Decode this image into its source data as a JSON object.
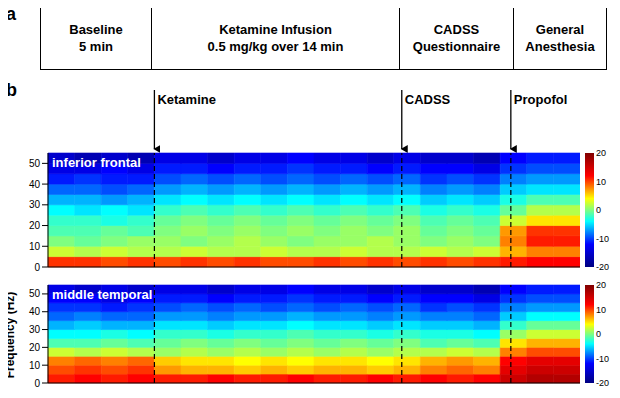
{
  "timeline": {
    "label": "a",
    "boxes": [
      [
        "Baseline",
        "5 min"
      ],
      [
        "Ketamine Infusion",
        "0.5 mg/kg over 14 min"
      ],
      [
        "CADSS",
        "Questionnaire"
      ],
      [
        "General",
        "Anesthesia"
      ]
    ]
  },
  "panel_label": "b",
  "y_label": "Frequency (Hz)",
  "events": [
    {
      "x": 20,
      "label": "Ketamine"
    },
    {
      "x": 66.5,
      "label": "CADSS"
    },
    {
      "x": 87,
      "label": "Propofol"
    }
  ],
  "chart_data": [
    {
      "type": "heatmap",
      "title": "inferior frontal",
      "xlim": [
        0,
        100
      ],
      "ylim": [
        0,
        55
      ],
      "yticks": [
        0,
        10,
        20,
        30,
        40,
        50
      ],
      "tick_labels": "y",
      "x_bins": [
        0,
        5,
        10,
        15,
        20,
        25,
        30,
        35,
        40,
        45,
        50,
        55,
        60,
        65,
        70,
        75,
        80,
        85,
        90,
        95,
        100
      ],
      "y_bins": [
        0,
        5,
        10,
        15,
        20,
        25,
        30,
        35,
        40,
        45,
        50,
        55
      ],
      "cells": [
        [
          13,
          13,
          12,
          13,
          12,
          13,
          12,
          13,
          12,
          12,
          13,
          12,
          13,
          12,
          13,
          12,
          13,
          14,
          15,
          15
        ],
        [
          3,
          2,
          3,
          2,
          2,
          3,
          2,
          2,
          3,
          2,
          2,
          3,
          2,
          2,
          3,
          2,
          3,
          8,
          10,
          10
        ],
        [
          0,
          -1,
          0,
          1,
          1,
          0,
          1,
          2,
          1,
          0,
          1,
          1,
          2,
          1,
          0,
          1,
          0,
          10,
          14,
          14
        ],
        [
          -2,
          -2,
          -1,
          -2,
          0,
          1,
          0,
          1,
          0,
          1,
          0,
          1,
          0,
          1,
          -1,
          0,
          -1,
          9,
          13,
          13
        ],
        [
          -3,
          -3,
          -4,
          -3,
          -1,
          0,
          -1,
          0,
          -1,
          0,
          -1,
          0,
          -1,
          0,
          -2,
          -1,
          -2,
          3,
          6,
          6
        ],
        [
          -5,
          -6,
          -5,
          -6,
          -3,
          -2,
          -3,
          -2,
          -3,
          -2,
          -3,
          -2,
          -3,
          -2,
          -4,
          -3,
          -4,
          -1,
          2,
          2
        ],
        [
          -8,
          -8,
          -9,
          -8,
          -6,
          -5,
          -6,
          -5,
          -6,
          -5,
          -6,
          -5,
          -6,
          -5,
          -7,
          -6,
          -7,
          -4,
          -2,
          -2
        ],
        [
          -11,
          -11,
          -12,
          -11,
          -9,
          -8,
          -9,
          -8,
          -9,
          -8,
          -9,
          -8,
          -9,
          -8,
          -10,
          -9,
          -10,
          -7,
          -6,
          -6
        ],
        [
          -14,
          -13,
          -14,
          -14,
          -12,
          -11,
          -12,
          -11,
          -12,
          -11,
          -12,
          -11,
          -12,
          -11,
          -13,
          -12,
          -13,
          -10,
          -9,
          -9
        ],
        [
          -16,
          -16,
          -15,
          -16,
          -14,
          -14,
          -15,
          -14,
          -14,
          -13,
          -14,
          -14,
          -15,
          -14,
          -15,
          -15,
          -16,
          -13,
          -12,
          -12
        ],
        [
          -17,
          -18,
          -17,
          -18,
          -16,
          -16,
          -17,
          -16,
          -16,
          -15,
          -16,
          -16,
          -17,
          -16,
          -17,
          -17,
          -18,
          -15,
          -14,
          -14
        ]
      ],
      "colorbar": {
        "range": [
          -20,
          20
        ],
        "ticks": [
          -20,
          -10,
          0,
          10,
          20
        ]
      }
    },
    {
      "type": "heatmap",
      "title": "middle temporal",
      "xlim": [
        0,
        100
      ],
      "ylim": [
        0,
        55
      ],
      "yticks": [
        0,
        10,
        20,
        30,
        40,
        50
      ],
      "tick_labels": "y",
      "x_bins": [
        0,
        5,
        10,
        15,
        20,
        25,
        30,
        35,
        40,
        45,
        50,
        55,
        60,
        65,
        70,
        75,
        80,
        85,
        90,
        95,
        100
      ],
      "y_bins": [
        0,
        5,
        10,
        15,
        20,
        25,
        30,
        35,
        40,
        45,
        50,
        55
      ],
      "cells": [
        [
          14,
          15,
          14,
          15,
          14,
          14,
          15,
          14,
          14,
          15,
          14,
          14,
          15,
          14,
          15,
          14,
          15,
          17,
          18,
          18
        ],
        [
          12,
          13,
          12,
          13,
          9,
          8,
          8,
          7,
          8,
          7,
          8,
          8,
          7,
          8,
          10,
          11,
          10,
          16,
          17,
          17
        ],
        [
          10,
          11,
          10,
          11,
          7,
          6,
          6,
          5,
          6,
          5,
          6,
          6,
          5,
          6,
          8,
          9,
          8,
          15,
          16,
          16
        ],
        [
          3,
          2,
          3,
          2,
          1,
          2,
          1,
          2,
          1,
          2,
          1,
          2,
          1,
          2,
          2,
          3,
          2,
          10,
          12,
          12
        ],
        [
          -2,
          -2,
          -1,
          -2,
          -1,
          0,
          -1,
          0,
          -1,
          0,
          -1,
          0,
          -1,
          0,
          -2,
          -1,
          -2,
          6,
          8,
          8
        ],
        [
          -5,
          -5,
          -4,
          -5,
          -3,
          -3,
          -4,
          -3,
          -3,
          -2,
          -3,
          -3,
          -4,
          -3,
          -4,
          -4,
          -5,
          1,
          3,
          3
        ],
        [
          -8,
          -7,
          -8,
          -8,
          -6,
          -6,
          -7,
          -6,
          -6,
          -5,
          -6,
          -6,
          -7,
          -6,
          -7,
          -7,
          -8,
          -3,
          -1,
          -1
        ],
        [
          -11,
          -10,
          -11,
          -11,
          -9,
          -9,
          -10,
          -9,
          -9,
          -8,
          -9,
          -9,
          -10,
          -9,
          -10,
          -10,
          -11,
          -7,
          -5,
          -5
        ],
        [
          -13,
          -13,
          -14,
          -13,
          -12,
          -11,
          -12,
          -11,
          -12,
          -11,
          -12,
          -11,
          -12,
          -11,
          -13,
          -12,
          -13,
          -10,
          -9,
          -9
        ],
        [
          -15,
          -15,
          -16,
          -15,
          -14,
          -14,
          -15,
          -14,
          -14,
          -13,
          -14,
          -14,
          -15,
          -14,
          -15,
          -15,
          -16,
          -13,
          -12,
          -12
        ],
        [
          -16,
          -17,
          -16,
          -17,
          -16,
          -16,
          -17,
          -16,
          -16,
          -15,
          -16,
          -16,
          -17,
          -16,
          -17,
          -17,
          -18,
          -15,
          -14,
          -14
        ]
      ],
      "colorbar": {
        "range": [
          -20,
          20
        ],
        "ticks": [
          -20,
          -10,
          0,
          10,
          20
        ]
      }
    }
  ]
}
